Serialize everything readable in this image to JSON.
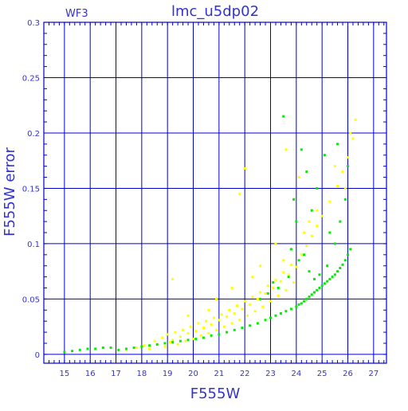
{
  "chart_data": {
    "type": "scatter",
    "title": "lmc_u5dp02",
    "subtitle": "WF3",
    "xlabel": "F555W",
    "ylabel": "F555W error",
    "xlim": [
      14.2,
      27.5
    ],
    "ylim": [
      -0.008,
      0.3
    ],
    "xticks": [
      15,
      16,
      17,
      18,
      19,
      20,
      21,
      22,
      23,
      24,
      25,
      26,
      27
    ],
    "xtick_labels": [
      "15",
      "16",
      "17",
      "18",
      "19",
      "20",
      "21",
      "22",
      "23",
      "24",
      "25",
      "26",
      "27"
    ],
    "yticks": [
      0,
      0.05,
      0.1,
      0.15,
      0.2,
      0.25,
      0.3
    ],
    "ytick_labels": [
      "0",
      "0.05",
      "0.1",
      "0.15",
      "0.2",
      "0.25",
      "0.3"
    ],
    "grid": true,
    "colors": {
      "axes": "#0000cc",
      "grid": "#0000cc",
      "text": "#3333cc",
      "series_yellow": "#ffff00",
      "series_green": "#00ee00"
    },
    "series": [
      {
        "color": "#ffff00",
        "x": [
          17.4,
          17.8,
          18.1,
          18.3,
          18.5,
          18.6,
          18.8,
          18.9,
          19.0,
          19.1,
          19.2,
          19.3,
          19.4,
          19.5,
          19.6,
          19.7,
          19.8,
          19.9,
          20.0,
          20.1,
          20.2,
          20.3,
          20.4,
          20.5,
          20.6,
          20.7,
          20.8,
          20.9,
          21.0,
          21.1,
          21.2,
          21.3,
          21.4,
          21.5,
          21.6,
          21.7,
          21.8,
          21.9,
          22.0,
          22.1,
          22.2,
          22.3,
          22.4,
          22.5,
          22.6,
          22.7,
          22.8,
          22.9,
          23.0,
          23.1,
          23.2,
          23.3,
          23.4,
          23.5,
          23.6,
          23.7,
          23.8,
          23.9,
          24.0,
          24.2,
          24.4,
          24.6,
          24.8,
          25.0,
          25.3,
          25.6,
          25.8,
          26.0,
          26.2,
          26.3,
          23.6,
          23.9,
          24.1,
          24.5,
          25.5,
          26.1,
          22.0,
          21.8,
          19.2,
          20.6,
          21.5,
          22.6,
          23.2,
          24.8,
          25.9,
          19.8,
          20.9,
          22.3,
          23.5,
          24.3
        ],
        "y": [
          0.004,
          0.006,
          0.008,
          0.005,
          0.012,
          0.009,
          0.015,
          0.007,
          0.018,
          0.011,
          0.013,
          0.02,
          0.009,
          0.016,
          0.022,
          0.012,
          0.019,
          0.025,
          0.014,
          0.021,
          0.028,
          0.017,
          0.024,
          0.03,
          0.019,
          0.027,
          0.033,
          0.022,
          0.031,
          0.036,
          0.025,
          0.034,
          0.04,
          0.028,
          0.037,
          0.044,
          0.031,
          0.041,
          0.048,
          0.035,
          0.045,
          0.052,
          0.039,
          0.05,
          0.056,
          0.043,
          0.055,
          0.062,
          0.048,
          0.06,
          0.067,
          0.053,
          0.066,
          0.074,
          0.058,
          0.072,
          0.081,
          0.065,
          0.079,
          0.09,
          0.098,
          0.107,
          0.116,
          0.125,
          0.138,
          0.152,
          0.165,
          0.178,
          0.195,
          0.212,
          0.185,
          0.14,
          0.16,
          0.12,
          0.17,
          0.2,
          0.168,
          0.145,
          0.068,
          0.04,
          0.06,
          0.08,
          0.1,
          0.13,
          0.15,
          0.035,
          0.05,
          0.07,
          0.085,
          0.11
        ]
      },
      {
        "color": "#00ee00",
        "x": [
          15.0,
          15.3,
          15.6,
          15.9,
          16.2,
          16.5,
          16.8,
          17.1,
          17.4,
          17.7,
          18.0,
          18.3,
          18.6,
          18.9,
          19.2,
          19.5,
          19.8,
          20.1,
          20.4,
          20.7,
          21.0,
          21.3,
          21.6,
          21.9,
          22.2,
          22.5,
          22.8,
          23.0,
          23.2,
          23.4,
          23.6,
          23.8,
          24.0,
          24.1,
          24.2,
          24.3,
          24.4,
          24.5,
          24.6,
          24.7,
          24.8,
          24.9,
          25.0,
          25.1,
          25.2,
          25.3,
          25.4,
          25.5,
          25.6,
          25.7,
          25.8,
          25.9,
          26.0,
          26.1,
          23.5,
          23.9,
          24.0,
          24.2,
          24.4,
          24.6,
          24.8,
          25.1,
          25.3,
          25.5,
          25.7,
          25.9,
          26.0,
          23.8,
          24.1,
          24.3,
          24.5,
          24.7,
          24.9,
          25.2,
          25.6,
          23.3,
          23.7,
          22.9,
          22.6,
          23.1
        ],
        "y": [
          0.002,
          0.003,
          0.004,
          0.005,
          0.005,
          0.006,
          0.006,
          0.004,
          0.005,
          0.006,
          0.007,
          0.008,
          0.009,
          0.01,
          0.011,
          0.012,
          0.013,
          0.014,
          0.015,
          0.017,
          0.018,
          0.02,
          0.022,
          0.024,
          0.026,
          0.028,
          0.031,
          0.033,
          0.035,
          0.037,
          0.039,
          0.041,
          0.043,
          0.045,
          0.046,
          0.048,
          0.05,
          0.052,
          0.054,
          0.056,
          0.058,
          0.06,
          0.062,
          0.064,
          0.066,
          0.068,
          0.07,
          0.072,
          0.075,
          0.078,
          0.081,
          0.085,
          0.09,
          0.095,
          0.215,
          0.14,
          0.12,
          0.185,
          0.165,
          0.13,
          0.15,
          0.18,
          0.11,
          0.1,
          0.12,
          0.14,
          0.17,
          0.095,
          0.085,
          0.09,
          0.075,
          0.068,
          0.072,
          0.08,
          0.19,
          0.06,
          0.07,
          0.055,
          0.05,
          0.065
        ]
      }
    ]
  }
}
